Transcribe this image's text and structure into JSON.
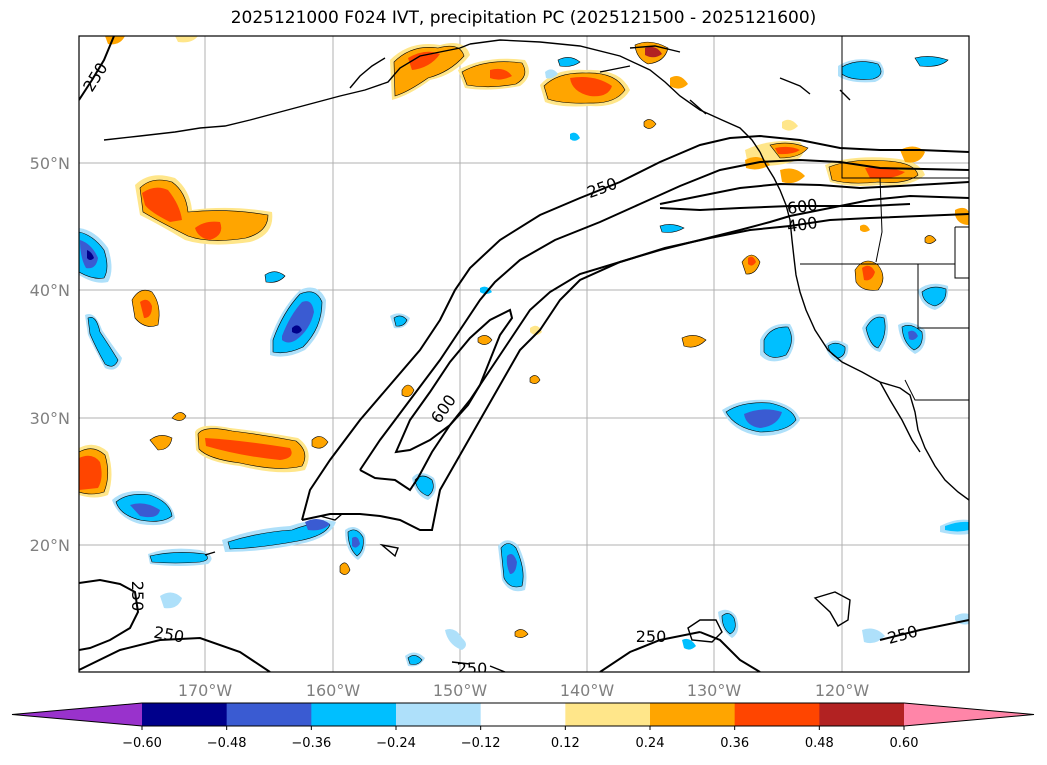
{
  "title": "2025121000 F024 IVT, precipitation PC (2025121500 - 2025121600)",
  "lat_labels": [
    "50°N",
    "40°N",
    "30°N",
    "20°N"
  ],
  "lon_labels": [
    "170°W",
    "160°W",
    "150°W",
    "140°W",
    "130°W",
    "120°W"
  ],
  "colorbar": {
    "ticks": [
      "−0.60",
      "−0.48",
      "−0.36",
      "−0.24",
      "−0.12",
      "0.12",
      "0.24",
      "0.36",
      "0.48",
      "0.60"
    ],
    "colors": [
      "#9932cc",
      "#00008b",
      "#3a5bd2",
      "#00bfff",
      "#aee0fa",
      "#ffffff",
      "#ffe68a",
      "#ffa500",
      "#ff4500",
      "#b22222",
      "#ff85a8"
    ]
  },
  "ivt_labels": [
    "250",
    "250",
    "400",
    "600",
    "600",
    "250",
    "250",
    "250",
    "250",
    "250"
  ],
  "colors": {
    "orange": "#ffa500",
    "red": "#ff4500",
    "yellow": "#ffe68a",
    "cyan": "#00bfff",
    "lightblue": "#aee0fa",
    "blue": "#3a5bd2",
    "navy": "#00008b"
  }
}
